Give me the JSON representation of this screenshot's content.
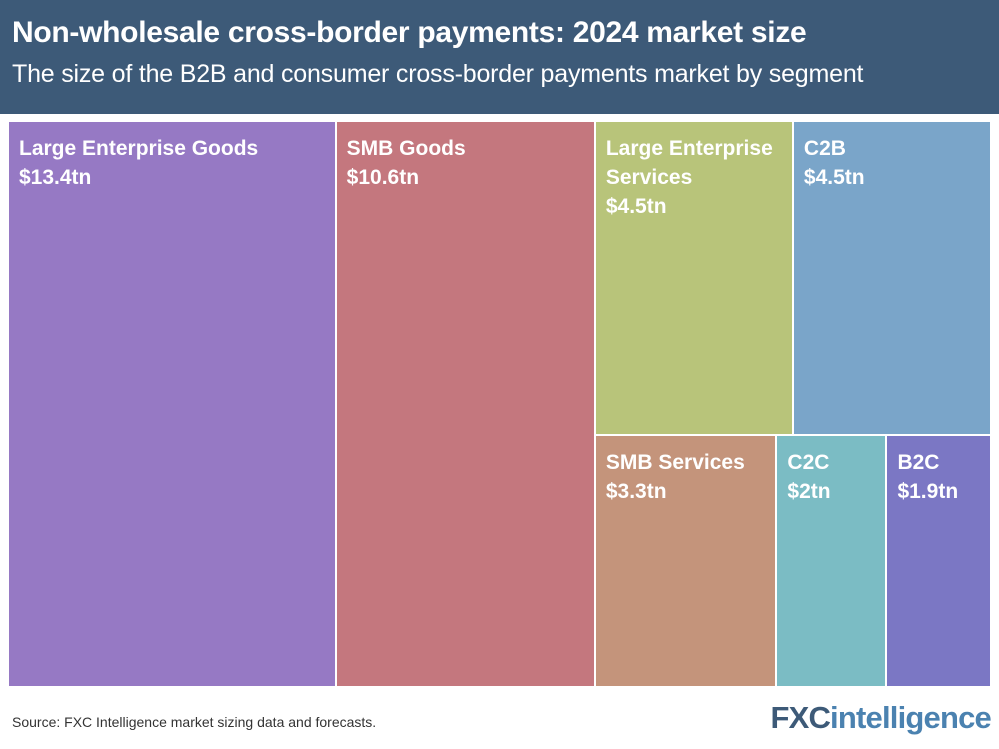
{
  "header": {
    "title": "Non-wholesale cross-border payments: 2024 market size",
    "subtitle": "The size of the B2B and consumer cross-border payments market by segment"
  },
  "chart_data": {
    "type": "treemap",
    "unit": "tn",
    "title": "Non-wholesale cross-border payments: 2024 market size",
    "subtitle": "The size of the B2B and consumer cross-border payments market by segment",
    "segments": [
      {
        "name": "Large Enterprise Goods",
        "value": 13.4,
        "label": "$13.4tn",
        "color": "#9679c4"
      },
      {
        "name": "SMB Goods",
        "value": 10.6,
        "label": "$10.6tn",
        "color": "#c4777e"
      },
      {
        "name": "Large Enterprise Services",
        "value": 4.5,
        "label": "$4.5tn",
        "color": "#b8c47a"
      },
      {
        "name": "C2B",
        "value": 4.5,
        "label": "$4.5tn",
        "color": "#7aa5c9"
      },
      {
        "name": "SMB Services",
        "value": 3.3,
        "label": "$3.3tn",
        "color": "#c4947b"
      },
      {
        "name": "C2C",
        "value": 2.0,
        "label": "$2tn",
        "color": "#7bbcc4"
      },
      {
        "name": "B2C",
        "value": 1.9,
        "label": "$1.9tn",
        "color": "#7b77c4"
      }
    ]
  },
  "footer": {
    "source": "Source: FXC Intelligence market sizing data and forecasts.",
    "logo_part1": "FXC",
    "logo_part2": "intelligence"
  }
}
